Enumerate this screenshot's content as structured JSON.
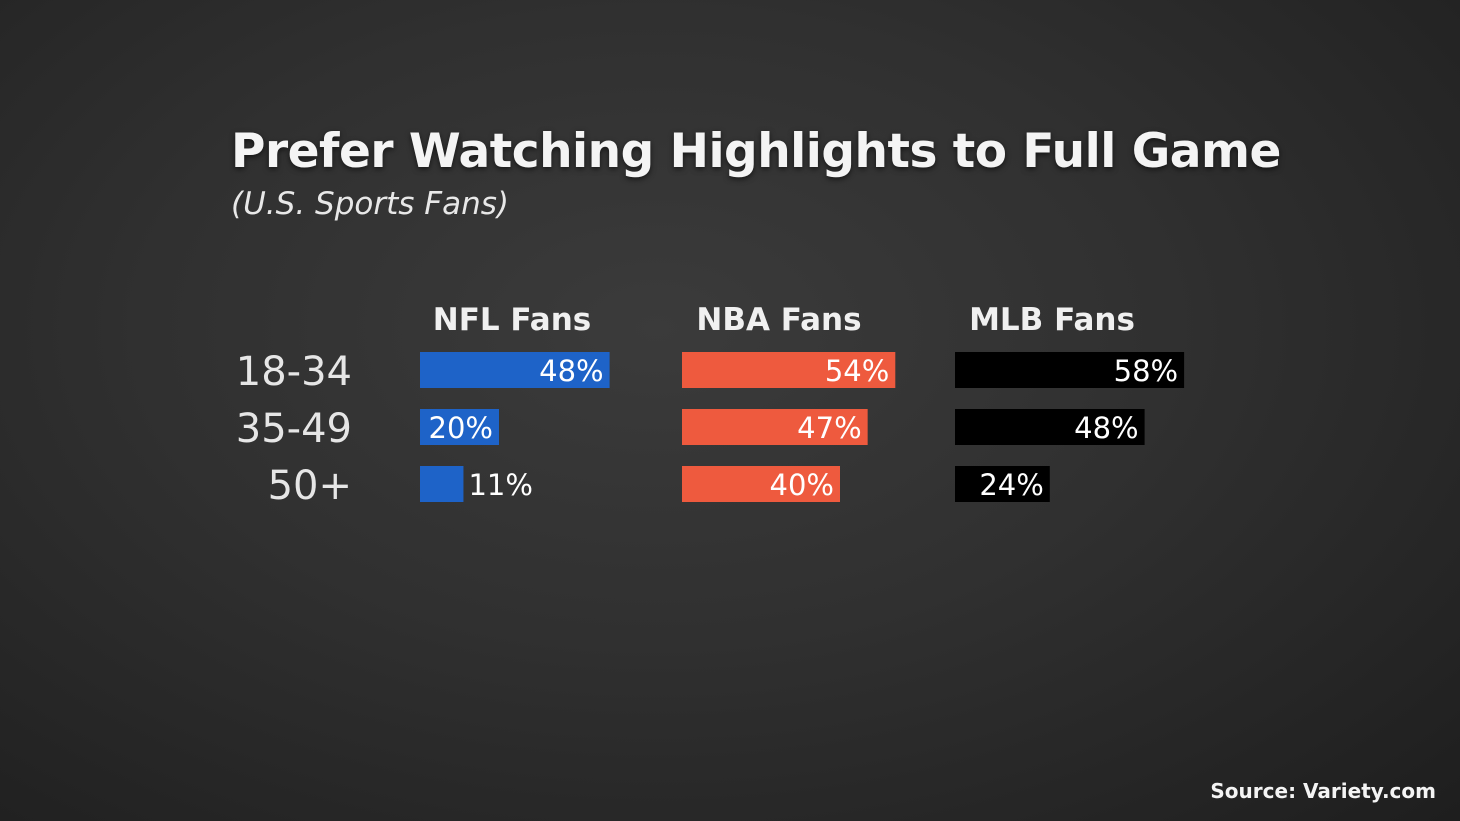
{
  "title": "Prefer Watching Highlights to Full Game",
  "subtitle": "(U.S. Sports Fans)",
  "source": "Source: Variety.com",
  "colors": {
    "NFL Fans": "#1e63c8",
    "NBA Fans": "#ee5a3e",
    "MLB Fans": "#000000"
  },
  "chart_data": {
    "type": "bar",
    "orientation": "horizontal",
    "categories": [
      "18-34",
      "35-49",
      "50+"
    ],
    "series": [
      {
        "name": "NFL Fans",
        "values": [
          48,
          20,
          11
        ],
        "labels": [
          "48%",
          "20%",
          "11%"
        ]
      },
      {
        "name": "NBA Fans",
        "values": [
          54,
          47,
          40
        ],
        "labels": [
          "54%",
          "47%",
          "40%"
        ]
      },
      {
        "name": "MLB Fans",
        "values": [
          58,
          48,
          24
        ],
        "labels": [
          "58%",
          "48%",
          "24%"
        ]
      }
    ],
    "unit": "%"
  }
}
